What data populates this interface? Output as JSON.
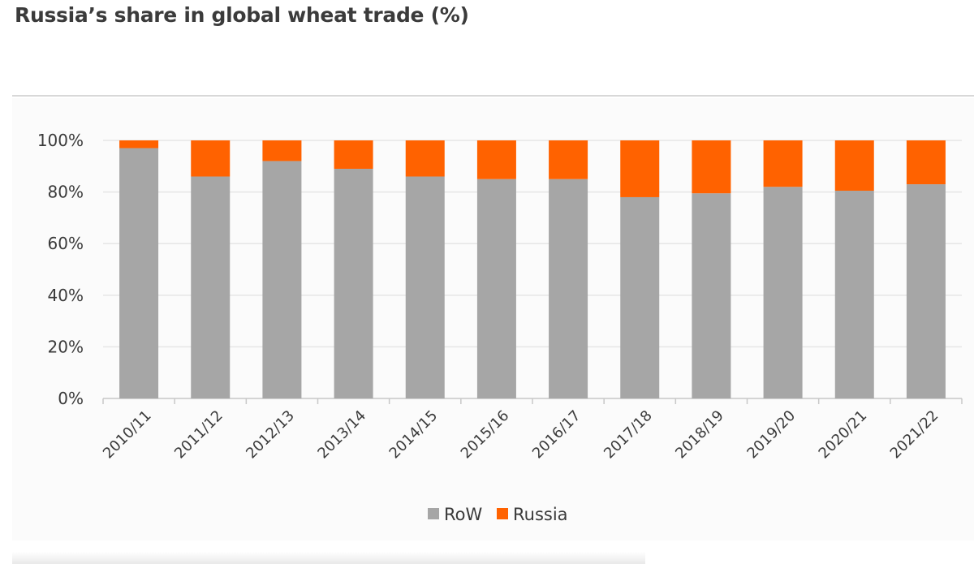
{
  "title": "Russia’s share in global wheat trade (%)",
  "chart_data": {
    "type": "bar",
    "stacked": true,
    "normalized_percent": true,
    "categories": [
      "2010/11",
      "2011/12",
      "2012/13",
      "2013/14",
      "2014/15",
      "2015/16",
      "2016/17",
      "2017/18",
      "2018/19",
      "2019/20",
      "2020/21",
      "2021/22"
    ],
    "series": [
      {
        "name": "RoW",
        "color": "#a6a6a6",
        "values": [
          97,
          86,
          92,
          89,
          86,
          85,
          85,
          78,
          79.5,
          82,
          80.5,
          83
        ]
      },
      {
        "name": "Russia",
        "color": "#ff6200",
        "values": [
          3,
          14,
          8,
          11,
          14,
          15,
          15,
          22,
          20.5,
          18,
          19.5,
          17
        ]
      }
    ],
    "ylim": [
      0,
      100
    ],
    "yticks": [
      "0%",
      "20%",
      "40%",
      "60%",
      "80%",
      "100%"
    ],
    "grid": true,
    "legend_position": "bottom-center"
  }
}
